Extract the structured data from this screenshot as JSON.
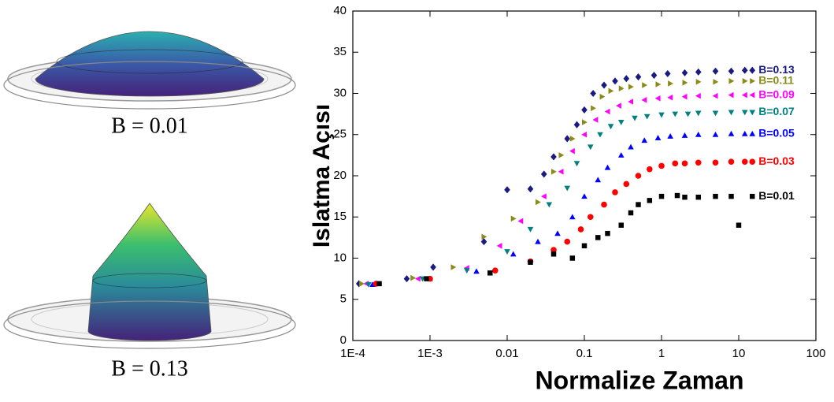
{
  "figures": [
    {
      "caption": "B = 0.01"
    },
    {
      "caption": "B = 0.13"
    }
  ],
  "chart_data": {
    "type": "scatter",
    "x_label": "Normalize Zaman",
    "y_label": "Islatma Açısı",
    "xscale": "log",
    "xlim": [
      0.0001,
      100
    ],
    "xticks": [
      {
        "value": 0.0001,
        "label": "1E-4"
      },
      {
        "value": 0.001,
        "label": "1E-3"
      },
      0.01,
      0.1,
      1,
      10,
      100
    ],
    "ylim": [
      0,
      40
    ],
    "yticks": [
      0,
      5,
      10,
      15,
      20,
      25,
      30,
      35,
      40
    ],
    "grid": false,
    "series": [
      {
        "name": "B=0.13",
        "color": "#1a1a80",
        "marker": "diamond",
        "x": [
          0.00012,
          0.0005,
          0.0011,
          0.005,
          0.01,
          0.02,
          0.03,
          0.04,
          0.06,
          0.08,
          0.1,
          0.13,
          0.18,
          0.25,
          0.35,
          0.5,
          0.8,
          1.2,
          2,
          3,
          5,
          8,
          12,
          15
        ],
        "values": [
          6.9,
          7.5,
          8.9,
          12,
          18.3,
          18.4,
          20.2,
          22.3,
          24.5,
          26.2,
          28,
          30,
          31,
          31.5,
          31.8,
          32,
          32.2,
          32.4,
          32.5,
          32.6,
          32.7,
          32.7,
          32.8,
          32.8
        ]
      },
      {
        "name": "B=0.11",
        "color": "#8b8b1a",
        "marker": "triangle-right",
        "x": [
          0.00013,
          0.0006,
          0.002,
          0.005,
          0.012,
          0.025,
          0.04,
          0.05,
          0.07,
          0.1,
          0.13,
          0.17,
          0.22,
          0.3,
          0.4,
          0.6,
          0.9,
          1.3,
          2,
          3,
          5,
          8,
          12,
          15
        ],
        "values": [
          6.9,
          7.6,
          8.9,
          12.6,
          14.8,
          16.8,
          20.5,
          22.5,
          24.5,
          26.5,
          28.2,
          29.6,
          30.3,
          30.6,
          30.8,
          31,
          31.1,
          31.2,
          31.3,
          31.4,
          31.4,
          31.5,
          31.5,
          31.5
        ]
      },
      {
        "name": "B=0.09",
        "color": "#ff00ff",
        "marker": "triangle-left",
        "x": [
          0.00015,
          0.0007,
          0.003,
          0.008,
          0.015,
          0.03,
          0.05,
          0.07,
          0.1,
          0.14,
          0.2,
          0.28,
          0.4,
          0.6,
          0.9,
          1.3,
          2,
          3,
          5,
          8,
          12,
          15
        ],
        "values": [
          6.9,
          7.5,
          8.8,
          11.5,
          14.5,
          17.5,
          20.5,
          23,
          25,
          26.8,
          27.8,
          28.5,
          29,
          29.2,
          29.4,
          29.5,
          29.6,
          29.7,
          29.7,
          29.8,
          29.8,
          29.8
        ]
      },
      {
        "name": "B=0.07",
        "color": "#008080",
        "marker": "triangle-down",
        "x": [
          0.00016,
          0.0008,
          0.003,
          0.01,
          0.02,
          0.035,
          0.06,
          0.08,
          0.12,
          0.16,
          0.22,
          0.3,
          0.45,
          0.65,
          1,
          1.5,
          2.2,
          3,
          5,
          8,
          12,
          15
        ],
        "values": [
          6.8,
          7.5,
          8.5,
          10.8,
          13.5,
          16.5,
          18.5,
          21.5,
          23.5,
          25,
          26,
          26.5,
          27,
          27.2,
          27.4,
          27.5,
          27.5,
          27.6,
          27.6,
          27.7,
          27.7,
          27.7
        ]
      },
      {
        "name": "B=0.05",
        "color": "#0000ff",
        "marker": "triangle-up",
        "x": [
          0.00018,
          0.001,
          0.004,
          0.012,
          0.025,
          0.045,
          0.07,
          0.1,
          0.15,
          0.2,
          0.3,
          0.4,
          0.6,
          0.9,
          1.3,
          2,
          3,
          5,
          8,
          12,
          15
        ],
        "values": [
          6.8,
          7.5,
          8.4,
          10.5,
          12,
          13,
          15,
          17.5,
          19.5,
          21,
          22.5,
          23.5,
          24.3,
          24.6,
          24.8,
          24.9,
          25,
          25,
          25.1,
          25.1,
          25.1
        ]
      },
      {
        "name": "B=0.03",
        "color": "#ff0000",
        "marker": "circle",
        "x": [
          0.0002,
          0.001,
          0.007,
          0.02,
          0.04,
          0.06,
          0.09,
          0.12,
          0.18,
          0.25,
          0.35,
          0.5,
          0.7,
          1,
          1.5,
          2,
          3,
          5,
          8,
          12,
          15
        ],
        "values": [
          6.9,
          7.5,
          8.5,
          9.6,
          11,
          12,
          13.5,
          15,
          16.5,
          18,
          19,
          20,
          20.8,
          21.2,
          21.5,
          21.5,
          21.6,
          21.6,
          21.7,
          21.7,
          21.7
        ]
      },
      {
        "name": "B=0.01",
        "color": "#000000",
        "marker": "square",
        "x": [
          0.00022,
          0.0009,
          0.006,
          0.02,
          0.04,
          0.07,
          0.1,
          0.15,
          0.2,
          0.3,
          0.4,
          0.5,
          0.7,
          1,
          1.6,
          2,
          3,
          5,
          8,
          10,
          15
        ],
        "values": [
          6.9,
          7.5,
          8.2,
          9.5,
          10.5,
          10,
          11.5,
          12.5,
          13,
          14,
          15.5,
          16.5,
          17,
          17.5,
          17.6,
          17.4,
          17.4,
          17.5,
          17.5,
          14,
          17.5
        ]
      }
    ]
  }
}
